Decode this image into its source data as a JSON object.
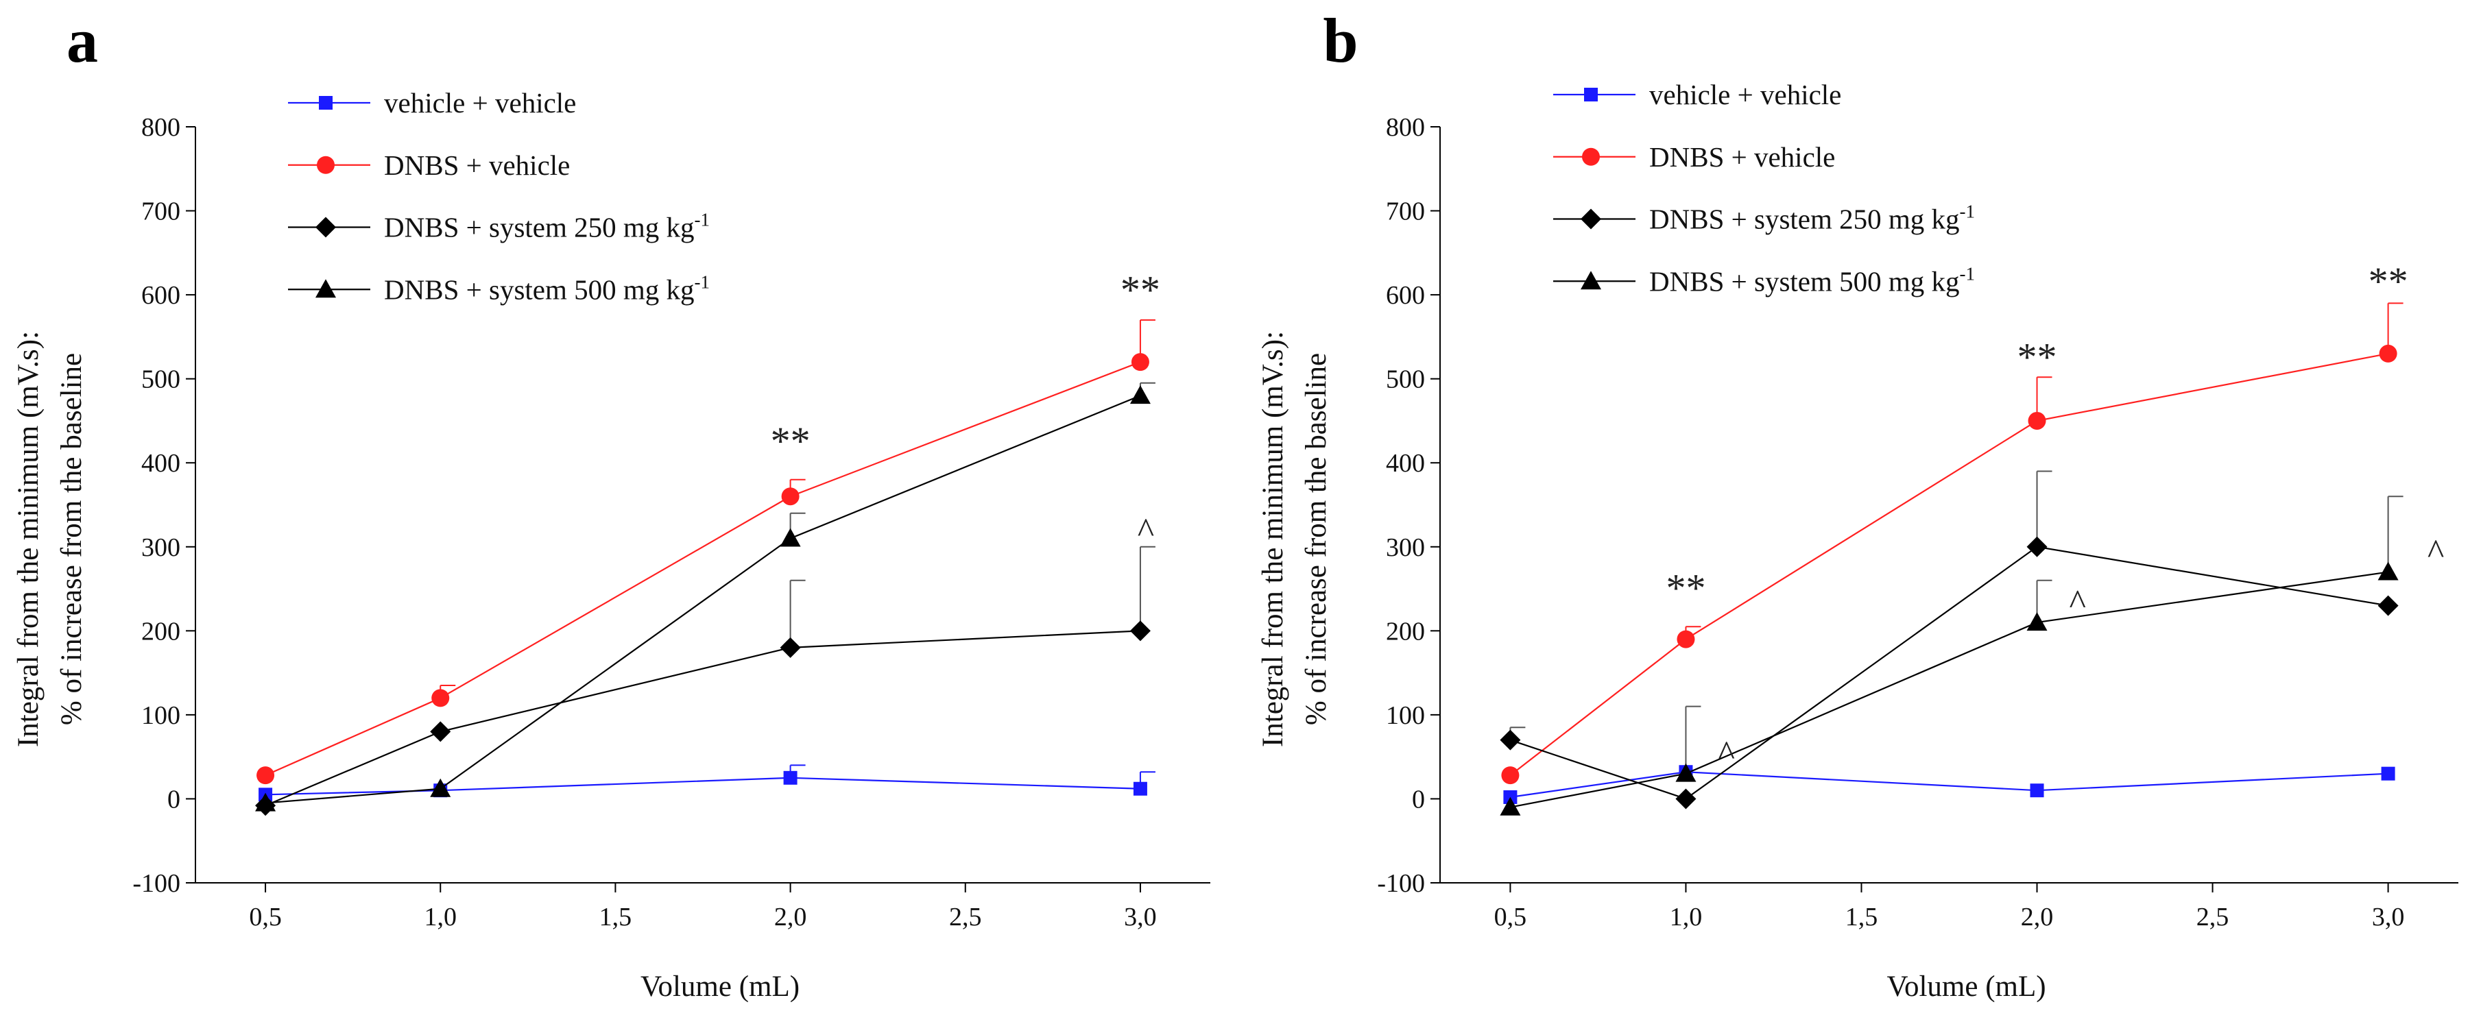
{
  "chart_data": [
    {
      "type": "line",
      "panel_label": "a",
      "xlabel": "Volume (mL)",
      "ylabel_line1": "Integral from the minimum (mV.s):",
      "ylabel_line2": "% of increase from the baseline",
      "xlim": [
        0.3,
        3.2
      ],
      "ylim": [
        -100,
        800
      ],
      "x_ticks": [
        0.5,
        1.0,
        1.5,
        2.0,
        2.5,
        3.0
      ],
      "x_tick_labels": [
        "0,5",
        "1,0",
        "1,5",
        "2,0",
        "2,5",
        "3,0"
      ],
      "y_ticks": [
        -100,
        0,
        100,
        200,
        300,
        400,
        500,
        600,
        700,
        800
      ],
      "y_tick_labels": [
        "-100",
        "0",
        "100",
        "200",
        "300",
        "400",
        "500",
        "600",
        "700",
        "800"
      ],
      "legend_position": "top-left",
      "series": [
        {
          "name": "vehicle + vehicle",
          "name_sup": "",
          "color": "#1a1aff",
          "marker": "square",
          "x": [
            0.5,
            1.0,
            2.0,
            3.0
          ],
          "y": [
            5,
            10,
            25,
            12
          ],
          "err": [
            0,
            0,
            15,
            20
          ]
        },
        {
          "name": "DNBS + vehicle",
          "name_sup": "",
          "color": "#ff2020",
          "marker": "circle",
          "x": [
            0.5,
            1.0,
            2.0,
            3.0
          ],
          "y": [
            28,
            120,
            360,
            520
          ],
          "err": [
            0,
            15,
            20,
            50
          ]
        },
        {
          "name": "DNBS + system 250 mg kg",
          "name_sup": "-1",
          "color": "#000000",
          "marker": "diamond",
          "x": [
            0.5,
            1.0,
            2.0,
            3.0
          ],
          "y": [
            -8,
            80,
            180,
            200
          ],
          "err": [
            0,
            0,
            80,
            100
          ]
        },
        {
          "name": "DNBS + system 500 mg kg",
          "name_sup": "-1",
          "color": "#000000",
          "marker": "triangle",
          "x": [
            0.5,
            1.0,
            2.0,
            3.0
          ],
          "y": [
            -5,
            12,
            310,
            480
          ],
          "err": [
            0,
            0,
            30,
            15
          ]
        }
      ],
      "annotations": [
        {
          "text": "**",
          "x": 2.0,
          "y": 410
        },
        {
          "text": "**",
          "x": 3.0,
          "y": 590
        },
        {
          "text": "^",
          "x": 3.0,
          "y": 305
        }
      ]
    },
    {
      "type": "line",
      "panel_label": "b",
      "xlabel": "Volume (mL)",
      "ylabel_line1": "Integral from the minimum (mV.s):",
      "ylabel_line2": "% of increase from the baseline",
      "xlim": [
        0.3,
        3.2
      ],
      "ylim": [
        -100,
        800
      ],
      "x_ticks": [
        0.5,
        1.0,
        1.5,
        2.0,
        2.5,
        3.0
      ],
      "x_tick_labels": [
        "0,5",
        "1,0",
        "1,5",
        "2,0",
        "2,5",
        "3,0"
      ],
      "y_ticks": [
        -100,
        0,
        100,
        200,
        300,
        400,
        500,
        600,
        700,
        800
      ],
      "y_tick_labels": [
        "-100",
        "0",
        "100",
        "200",
        "300",
        "400",
        "500",
        "600",
        "700",
        "800"
      ],
      "legend_position": "top-left",
      "series": [
        {
          "name": "vehicle + vehicle",
          "name_sup": "",
          "color": "#1a1aff",
          "marker": "square",
          "x": [
            0.5,
            1.0,
            2.0,
            3.0
          ],
          "y": [
            2,
            32,
            10,
            30
          ],
          "err": [
            0,
            0,
            0,
            0
          ]
        },
        {
          "name": "DNBS + vehicle",
          "name_sup": "",
          "color": "#ff2020",
          "marker": "circle",
          "x": [
            0.5,
            1.0,
            2.0,
            3.0
          ],
          "y": [
            28,
            190,
            450,
            530
          ],
          "err": [
            0,
            15,
            52,
            60
          ]
        },
        {
          "name": "DNBS + system 250 mg kg",
          "name_sup": "-1",
          "color": "#000000",
          "marker": "diamond",
          "x": [
            0.5,
            1.0,
            2.0,
            3.0
          ],
          "y": [
            70,
            0,
            300,
            230
          ],
          "err": [
            15,
            0,
            90,
            0
          ]
        },
        {
          "name": "DNBS + system 500 mg kg",
          "name_sup": "-1",
          "color": "#000000",
          "marker": "triangle",
          "x": [
            0.5,
            1.0,
            2.0,
            3.0
          ],
          "y": [
            -10,
            30,
            210,
            270
          ],
          "err": [
            0,
            80,
            50,
            90
          ]
        }
      ],
      "annotations": [
        {
          "text": "**",
          "x": 1.0,
          "y": 235
        },
        {
          "text": "**",
          "x": 2.0,
          "y": 510
        },
        {
          "text": "**",
          "x": 3.0,
          "y": 600
        },
        {
          "text": "^",
          "x": 1.1,
          "y": 40
        },
        {
          "text": "^",
          "x": 2.1,
          "y": 220
        },
        {
          "text": "^",
          "x": 3.12,
          "y": 280
        }
      ]
    }
  ]
}
